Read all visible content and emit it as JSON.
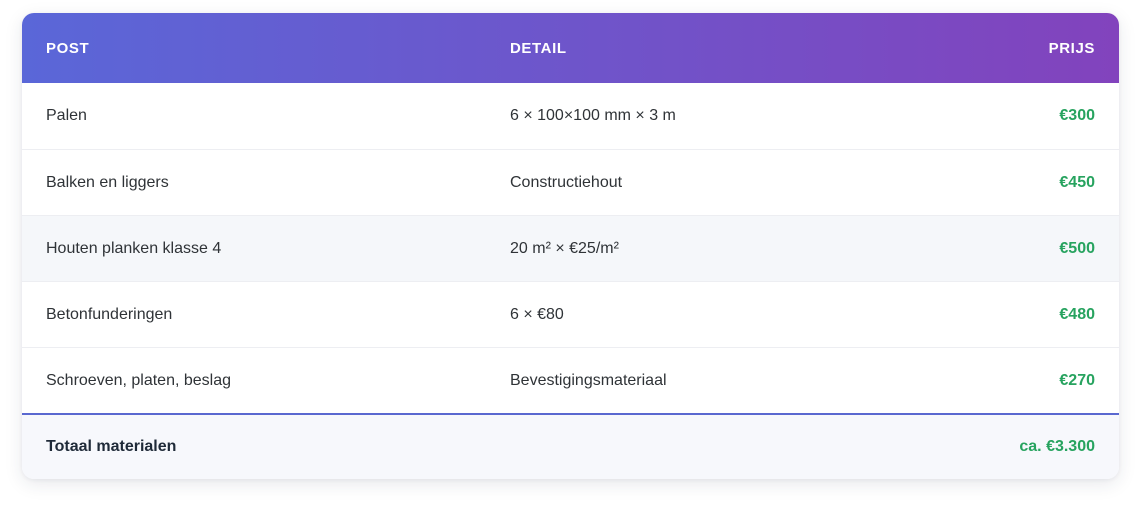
{
  "table": {
    "columns": [
      "POST",
      "DETAIL",
      "PRIJS"
    ],
    "rows": [
      {
        "post": "Palen",
        "detail": "6 × 100×100 mm × 3 m",
        "prijs": "€300",
        "highlight": false
      },
      {
        "post": "Balken en liggers",
        "detail": "Constructiehout",
        "prijs": "€450",
        "highlight": false
      },
      {
        "post": "Houten planken klasse 4",
        "detail": "20 m² × €25/m²",
        "prijs": "€500",
        "highlight": true
      },
      {
        "post": "Betonfunderingen",
        "detail": "6 × €80",
        "prijs": "€480",
        "highlight": false
      },
      {
        "post": "Schroeven, platen, beslag",
        "detail": "Bevestigingsmateriaal",
        "prijs": "€270",
        "highlight": false
      }
    ],
    "total": {
      "label": "Totaal materialen",
      "value": "ca. €3.300"
    }
  },
  "colors": {
    "header_gradient_left": "#5a67d8",
    "header_gradient_right": "#8243bd",
    "price_green": "#27a35f",
    "total_border_blue": "#5a68d0",
    "highlight_row_bg": "#f5f7fa",
    "total_row_bg": "#f7f8fc"
  },
  "chart_data": {
    "type": "table",
    "title": "",
    "columns": [
      "POST",
      "DETAIL",
      "PRIJS"
    ],
    "rows": [
      [
        "Palen",
        "6 × 100×100 mm × 3 m",
        "€300"
      ],
      [
        "Balken en liggers",
        "Constructiehout",
        "€450"
      ],
      [
        "Houten planken klasse 4",
        "20 m² × €25/m²",
        "€500"
      ],
      [
        "Betonfunderingen",
        "6 × €80",
        "€480"
      ],
      [
        "Schroeven, platen, beslag",
        "Bevestigingsmateriaal",
        "€270"
      ]
    ],
    "total_row": [
      "Totaal materialen",
      "",
      "ca. €3.300"
    ],
    "price_values_eur": [
      300,
      450,
      500,
      480,
      270
    ],
    "total_value_eur": 3300
  }
}
